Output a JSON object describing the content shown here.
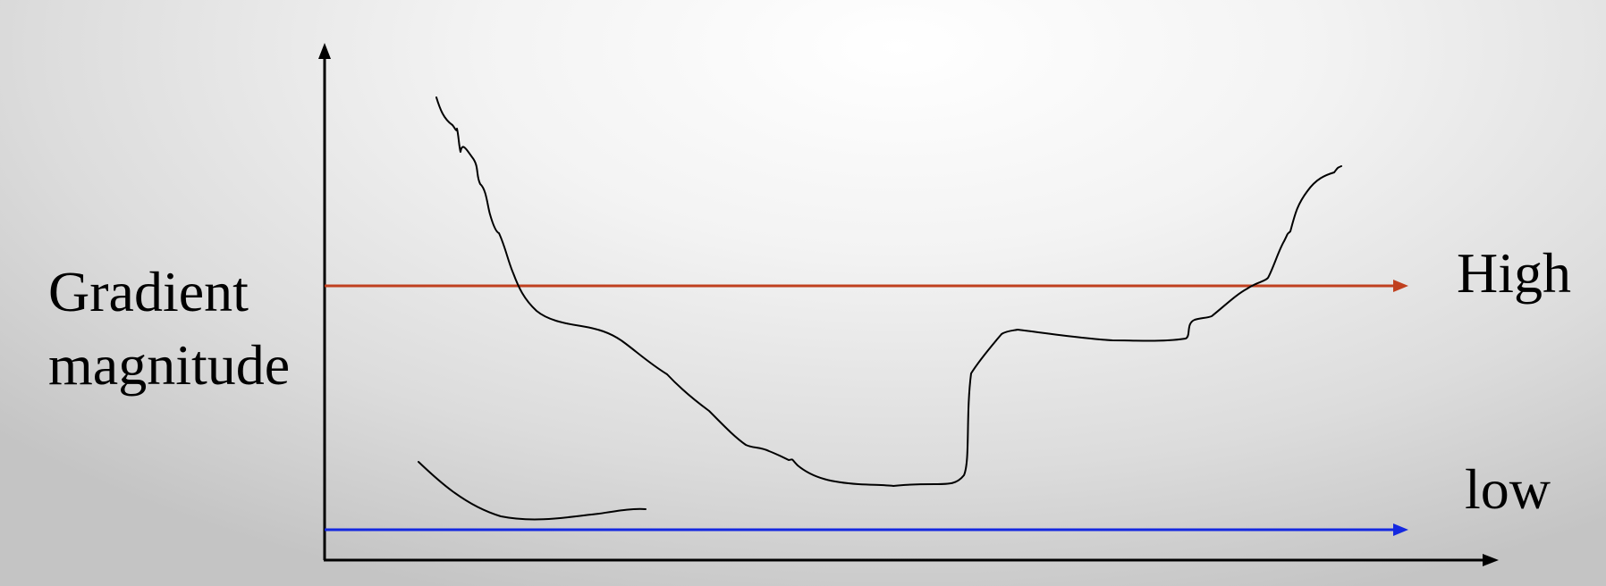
{
  "labels": {
    "y_axis_line1": "Gradient",
    "y_axis_line2": "magnitude",
    "high_threshold": "High",
    "low_threshold": "low"
  },
  "colors": {
    "high_threshold": "#c0401f",
    "low_threshold": "#1428e0",
    "curve": "#000000",
    "axes": "#000000"
  }
}
